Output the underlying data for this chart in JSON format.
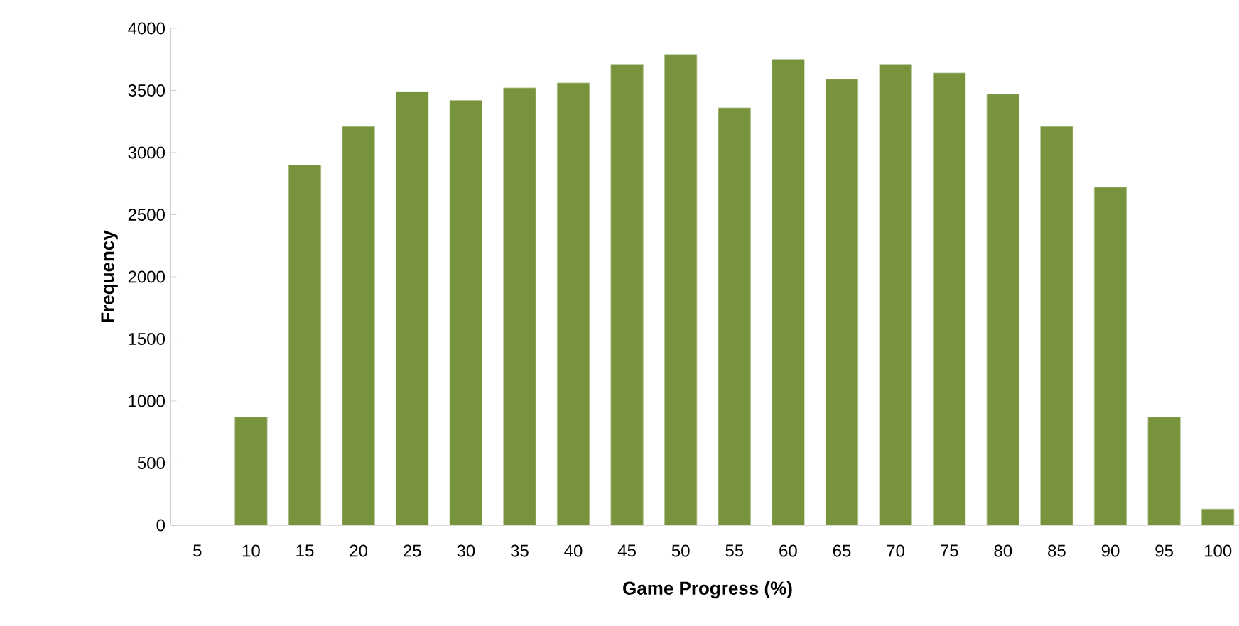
{
  "chart_data": {
    "type": "bar",
    "xlabel": "Game Progress (%)",
    "ylabel": "Frequency",
    "categories": [
      "5",
      "10",
      "15",
      "20",
      "25",
      "30",
      "35",
      "40",
      "45",
      "50",
      "55",
      "60",
      "65",
      "70",
      "75",
      "80",
      "85",
      "90",
      "95",
      "100"
    ],
    "values": [
      0,
      870,
      2900,
      3210,
      3490,
      3420,
      3520,
      3560,
      3710,
      3790,
      3360,
      3750,
      3590,
      3710,
      3640,
      3470,
      3210,
      2720,
      870,
      130
    ],
    "color": "#77933c",
    "ylim": [
      0,
      4000
    ],
    "yticks": [
      0,
      500,
      1000,
      1500,
      2000,
      2500,
      3000,
      3500,
      4000
    ],
    "grid": false
  }
}
